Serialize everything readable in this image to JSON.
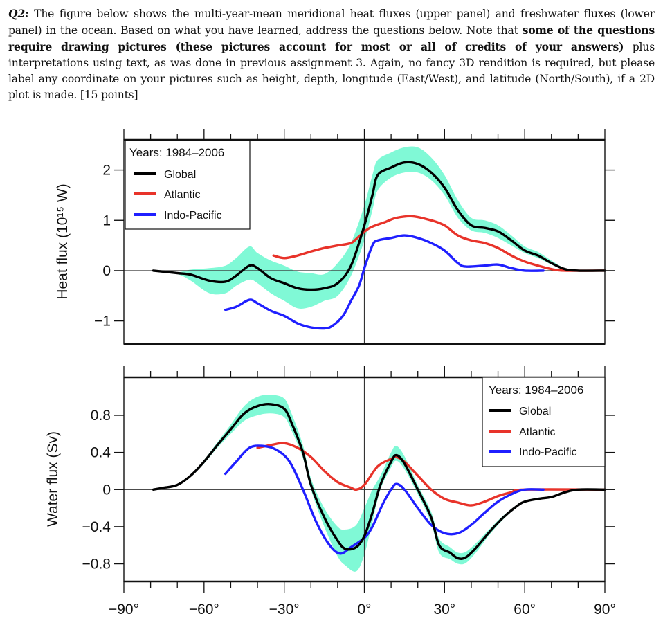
{
  "question": {
    "label": "Q2:",
    "text1": " The figure below shows the multi-year-mean meridional heat fluxes (upper panel) and freshwater fluxes (lower panel) in the ocean. Based on what you have learned, address the questions below. Note that ",
    "bold": "some of the questions require drawing pictures (these pictures account for most or all of credits of your answers)",
    "text2": " plus interpretations using text, as was done in previous assignment 3. Again, no fancy 3D rendition is required, but please label any coordinate on your pictures such as height, depth, longitude (East/West), and latitude (North/South), if a 2D plot is made. [15 points]"
  },
  "colors": {
    "global": "#000000",
    "atlantic": "#e8332a",
    "indo_pacific": "#1f1fff",
    "band": "#80f9d6"
  },
  "chart_data": [
    {
      "type": "line",
      "panel": "upper",
      "ylabel": "Heat flux (10¹⁵ W)",
      "xlim": [
        -90,
        90
      ],
      "ylim": [
        -1.46,
        2.6
      ],
      "xticks": [
        -90,
        -60,
        -30,
        0,
        30,
        60,
        90
      ],
      "yticks": [
        2,
        1,
        0,
        -1
      ],
      "ytick_labels": [
        "2",
        "1",
        "0",
        "−1"
      ],
      "legend": {
        "title": "Years: 1984–2006",
        "placement": "top-left"
      },
      "series": [
        {
          "name": "Global",
          "color": "#000000",
          "x": [
            -79,
            -70,
            -65,
            -58,
            -52,
            -48,
            -43,
            -40,
            -35,
            -30,
            -25,
            -20,
            -15,
            -10,
            -5,
            0,
            3,
            5,
            10,
            15,
            20,
            25,
            30,
            35,
            40,
            45,
            50,
            55,
            60,
            65,
            70,
            75,
            80,
            90
          ],
          "y": [
            0,
            -0.05,
            -0.08,
            -0.2,
            -0.22,
            -0.1,
            0.1,
            0.05,
            -0.15,
            -0.25,
            -0.35,
            -0.38,
            -0.35,
            -0.25,
            0.1,
            0.9,
            1.5,
            1.9,
            2.05,
            2.15,
            2.12,
            1.95,
            1.65,
            1.2,
            0.9,
            0.85,
            0.78,
            0.6,
            0.4,
            0.3,
            0.15,
            0.03,
            0,
            0
          ],
          "band_lower": [
            0,
            -0.07,
            -0.2,
            -0.45,
            -0.45,
            -0.3,
            -0.18,
            -0.25,
            -0.45,
            -0.6,
            -0.75,
            -0.72,
            -0.6,
            -0.5,
            -0.1,
            0.6,
            1.2,
            1.6,
            1.85,
            1.95,
            1.95,
            1.8,
            1.5,
            1.05,
            0.8,
            0.75,
            0.65,
            0.5,
            0.35,
            0.25,
            0.12,
            0.02,
            0,
            0
          ],
          "band_upper": [
            0,
            -0.03,
            0.02,
            0.05,
            0.1,
            0.25,
            0.48,
            0.35,
            0.2,
            0.1,
            -0.02,
            -0.05,
            -0.07,
            0.15,
            0.55,
            1.3,
            1.9,
            2.2,
            2.35,
            2.45,
            2.45,
            2.25,
            1.9,
            1.4,
            1.05,
            1.0,
            0.9,
            0.7,
            0.48,
            0.37,
            0.2,
            0.05,
            0,
            0
          ]
        },
        {
          "name": "Atlantic",
          "color": "#e8332a",
          "x": [
            -34,
            -30,
            -25,
            -20,
            -15,
            -10,
            -5,
            -2,
            2,
            8,
            12,
            18,
            25,
            30,
            35,
            40,
            45,
            50,
            55,
            60,
            65,
            70,
            75,
            90
          ],
          "y": [
            0.3,
            0.25,
            0.3,
            0.38,
            0.45,
            0.5,
            0.55,
            0.68,
            0.85,
            0.97,
            1.05,
            1.08,
            1.0,
            0.9,
            0.7,
            0.6,
            0.55,
            0.45,
            0.3,
            0.18,
            0.1,
            0.03,
            0,
            0
          ]
        },
        {
          "name": "Indo-Pacific",
          "color": "#1f1fff",
          "x": [
            -52,
            -48,
            -43,
            -40,
            -35,
            -30,
            -25,
            -20,
            -15,
            -12,
            -8,
            -5,
            -2,
            0,
            3,
            5,
            10,
            15,
            20,
            25,
            30,
            35,
            38,
            45,
            50,
            55,
            60,
            67
          ],
          "y": [
            -0.78,
            -0.72,
            -0.58,
            -0.65,
            -0.8,
            -0.9,
            -1.05,
            -1.13,
            -1.15,
            -1.1,
            -0.9,
            -0.6,
            -0.3,
            0.05,
            0.5,
            0.6,
            0.65,
            0.7,
            0.65,
            0.55,
            0.4,
            0.15,
            0.08,
            0.1,
            0.12,
            0.05,
            0,
            0
          ]
        }
      ]
    },
    {
      "type": "line",
      "panel": "lower",
      "ylabel": "Water flux (Sv)",
      "xlim": [
        -90,
        90
      ],
      "ylim": [
        -0.99,
        1.21
      ],
      "xticks": [
        -90,
        -60,
        -30,
        0,
        30,
        60,
        90
      ],
      "xtick_labels": [
        "−90°",
        "−60°",
        "−30°",
        "0°",
        "30°",
        "60°",
        "90°"
      ],
      "yticks": [
        0.8,
        0.4,
        0,
        -0.4,
        -0.8
      ],
      "ytick_labels": [
        "0.8",
        "0.4",
        "0",
        "−0.4",
        "−0.8"
      ],
      "legend": {
        "title": "Years: 1984–2006",
        "placement": "top-right"
      },
      "series": [
        {
          "name": "Global",
          "color": "#000000",
          "x": [
            -79,
            -75,
            -70,
            -65,
            -60,
            -55,
            -50,
            -45,
            -40,
            -35,
            -30,
            -27,
            -23,
            -20,
            -15,
            -10,
            -7,
            -3,
            0,
            3,
            6,
            10,
            12,
            15,
            20,
            25,
            28,
            32,
            35,
            38,
            42,
            47,
            52,
            57,
            60,
            65,
            70,
            75,
            80,
            90
          ],
          "y": [
            0,
            0.02,
            0.05,
            0.15,
            0.3,
            0.48,
            0.65,
            0.82,
            0.9,
            0.92,
            0.87,
            0.7,
            0.4,
            0.05,
            -0.3,
            -0.55,
            -0.64,
            -0.62,
            -0.5,
            -0.25,
            0.05,
            0.3,
            0.37,
            0.28,
            0,
            -0.3,
            -0.6,
            -0.68,
            -0.74,
            -0.73,
            -0.62,
            -0.45,
            -0.3,
            -0.18,
            -0.13,
            -0.1,
            -0.08,
            -0.03,
            0,
            0
          ],
          "band_lower": [
            0,
            0.02,
            0.05,
            0.14,
            0.28,
            0.45,
            0.6,
            0.74,
            0.8,
            0.82,
            0.78,
            0.62,
            0.34,
            0,
            -0.4,
            -0.72,
            -0.82,
            -0.88,
            -0.7,
            -0.35,
            0,
            0.24,
            0.31,
            0.22,
            -0.05,
            -0.36,
            -0.68,
            -0.75,
            -0.8,
            -0.79,
            -0.67,
            -0.48,
            -0.32,
            -0.19,
            -0.14,
            -0.11,
            -0.08,
            -0.03,
            0,
            0
          ],
          "band_upper": [
            0,
            0.02,
            0.05,
            0.16,
            0.32,
            0.51,
            0.7,
            0.9,
            1.0,
            1.02,
            0.98,
            0.8,
            0.48,
            0.12,
            -0.2,
            -0.4,
            -0.43,
            -0.38,
            -0.2,
            0.0,
            0.15,
            0.4,
            0.47,
            0.36,
            0.05,
            -0.24,
            -0.53,
            -0.62,
            -0.68,
            -0.67,
            -0.57,
            -0.42,
            -0.28,
            -0.17,
            -0.12,
            -0.09,
            -0.07,
            -0.02,
            0,
            0
          ]
        },
        {
          "name": "Atlantic",
          "color": "#e8332a",
          "x": [
            -40,
            -35,
            -30,
            -25,
            -20,
            -15,
            -10,
            -5,
            -3,
            0,
            5,
            10,
            12,
            15,
            20,
            25,
            30,
            35,
            40,
            45,
            50,
            55,
            60,
            90
          ],
          "y": [
            0.45,
            0.48,
            0.5,
            0.45,
            0.35,
            0.2,
            0.08,
            0.02,
            0,
            0.05,
            0.25,
            0.33,
            0.35,
            0.3,
            0.15,
            0,
            -0.1,
            -0.14,
            -0.17,
            -0.13,
            -0.07,
            -0.03,
            0,
            0
          ]
        },
        {
          "name": "Indo-Pacific",
          "color": "#1f1fff",
          "x": [
            -52,
            -48,
            -43,
            -38,
            -33,
            -28,
            -23,
            -18,
            -13,
            -9,
            -5,
            0,
            3,
            7,
            10,
            12,
            15,
            20,
            25,
            30,
            35,
            40,
            45,
            50,
            55,
            60,
            67
          ],
          "y": [
            0.17,
            0.3,
            0.45,
            0.47,
            0.43,
            0.3,
            0,
            -0.35,
            -0.6,
            -0.69,
            -0.62,
            -0.52,
            -0.4,
            -0.15,
            0,
            0.06,
            0,
            -0.2,
            -0.38,
            -0.47,
            -0.47,
            -0.38,
            -0.25,
            -0.13,
            -0.05,
            0,
            0
          ]
        }
      ]
    }
  ]
}
